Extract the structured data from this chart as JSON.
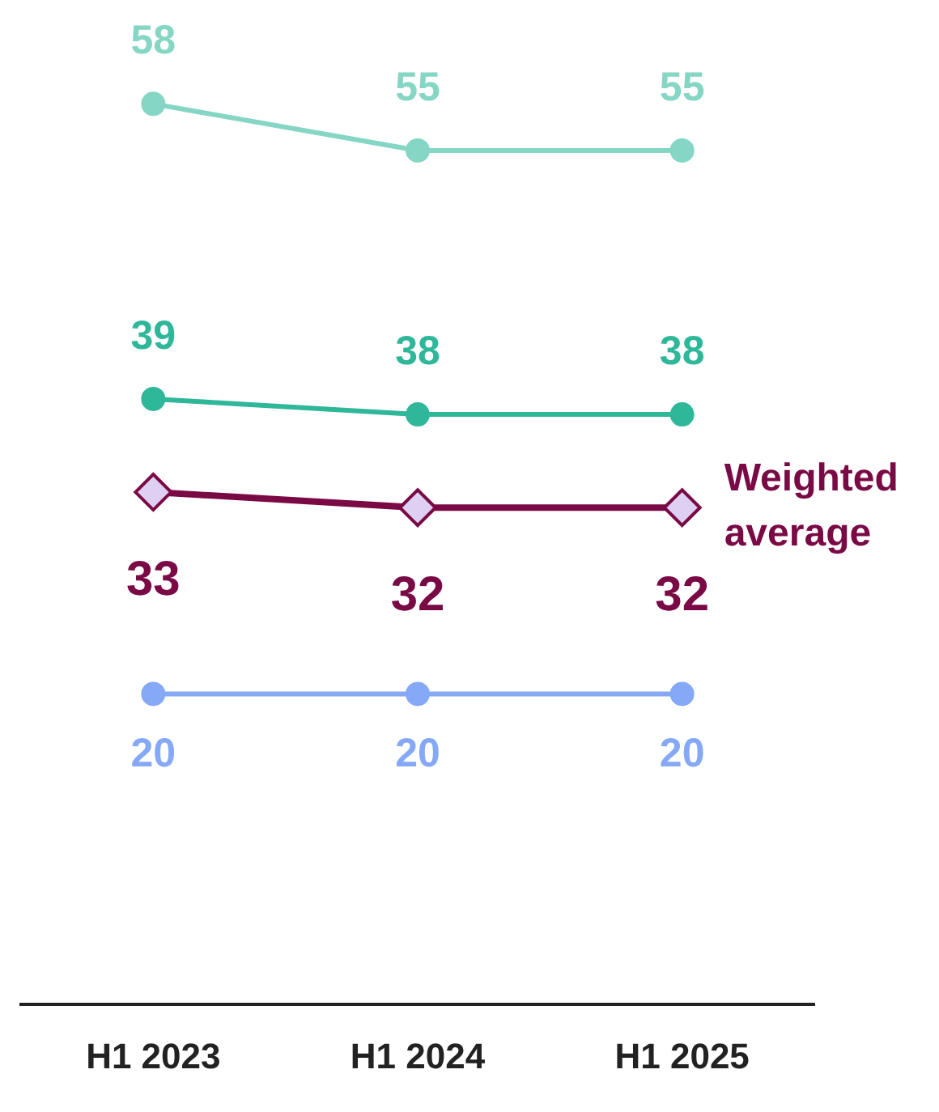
{
  "chart_data": {
    "type": "line",
    "categories": [
      "H1 2023",
      "H1 2024",
      "H1 2025"
    ],
    "grid": false,
    "legend": false,
    "tick_labels": "x",
    "data_labels": true,
    "line_style": "solid",
    "series": [
      {
        "color": "#85d6c4",
        "marker": "circle",
        "values": [
          58,
          55,
          55
        ]
      },
      {
        "color": "#2fb79a",
        "marker": "circle",
        "values": [
          39,
          38,
          38
        ]
      },
      {
        "name": "Weighted average",
        "color": "#7a0a45",
        "marker": "diamond",
        "values": [
          33,
          32,
          32
        ]
      },
      {
        "color": "#85a9f7",
        "marker": "circle",
        "values": [
          20,
          20,
          20
        ]
      }
    ]
  }
}
